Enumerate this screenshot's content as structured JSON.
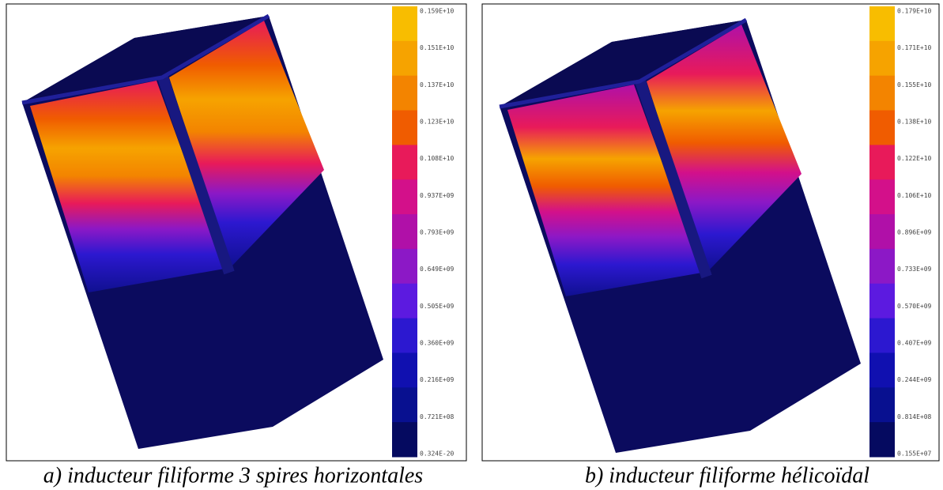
{
  "panels": [
    {
      "colorbar": {
        "labels": [
          "0.159E+10",
          "0.151E+10",
          "0.137E+10",
          "0.123E+10",
          "0.108E+10",
          "0.937E+09",
          "0.793E+09",
          "0.649E+09",
          "0.505E+09",
          "0.360E+09",
          "0.216E+09",
          "0.721E+08",
          "0.324E-20"
        ],
        "colors": [
          "#f8bd00",
          "#f6a300",
          "#f38400",
          "#f05c00",
          "#e81a5a",
          "#d3108a",
          "#b010a8",
          "#8c18c6",
          "#5c1ae0",
          "#2c18d0",
          "#1010b0",
          "#081090",
          "#050a60"
        ]
      },
      "caption": "a)  inducteur filiforme 3 spires horizontales"
    },
    {
      "colorbar": {
        "labels": [
          "0.179E+10",
          "0.171E+10",
          "0.155E+10",
          "0.138E+10",
          "0.122E+10",
          "0.106E+10",
          "0.896E+09",
          "0.733E+09",
          "0.570E+09",
          "0.407E+09",
          "0.244E+09",
          "0.814E+08",
          "0.155E+07"
        ],
        "colors": [
          "#f8bd00",
          "#f6a300",
          "#f38400",
          "#f05c00",
          "#e81a5a",
          "#d3108a",
          "#b010a8",
          "#8c18c6",
          "#5c1ae0",
          "#2c18d0",
          "#1010b0",
          "#081090",
          "#050a60"
        ]
      },
      "caption": "b) inducteur filiforme hélicoïdal"
    }
  ]
}
